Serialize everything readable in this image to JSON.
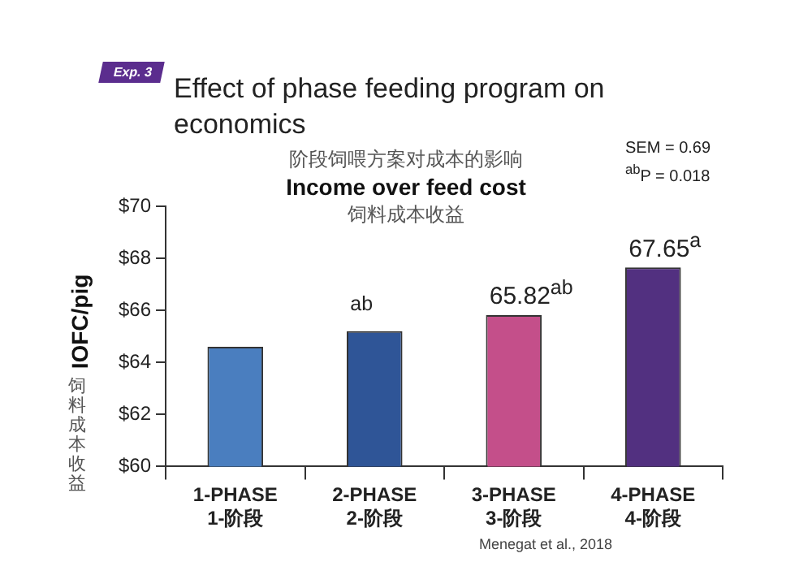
{
  "chart_data": {
    "type": "bar",
    "title": "Effect of phase feeding program on economics",
    "subtitle": "阶段饲喂方案对成本的影响\nIncome over feed cost\n饲料成本收益",
    "ylabel": "IOFC/pig\n饲料成本收益",
    "categories": [
      "1-PHASE\n1-阶段",
      "2-PHASE\n2-阶段",
      "3-PHASE\n3-阶段",
      "4-PHASE\n4-阶段"
    ],
    "values": [
      64.6,
      65.2,
      65.82,
      67.65
    ],
    "colors": [
      "#4a7ebf",
      "#2f5597",
      "#c44f8a",
      "#523080"
    ],
    "value_labels": [
      null,
      "$^{ab}$",
      "65.82$^{ab}$",
      "67.65$^{a}$"
    ],
    "ylim": [
      60,
      70
    ],
    "yticks": [
      {
        "value": 60,
        "label": "$60"
      },
      {
        "value": 62,
        "label": "$62"
      },
      {
        "value": 64,
        "label": "$64"
      },
      {
        "value": 66,
        "label": "$66"
      },
      {
        "value": 68,
        "label": "$68"
      },
      {
        "value": 70,
        "label": "$70"
      }
    ],
    "grid": false,
    "legend": false,
    "annotations": [
      "Exp. 3",
      "SEM = 0.69",
      "$^{ab}$P = 0.018",
      "Menegat et al., 2018"
    ]
  }
}
